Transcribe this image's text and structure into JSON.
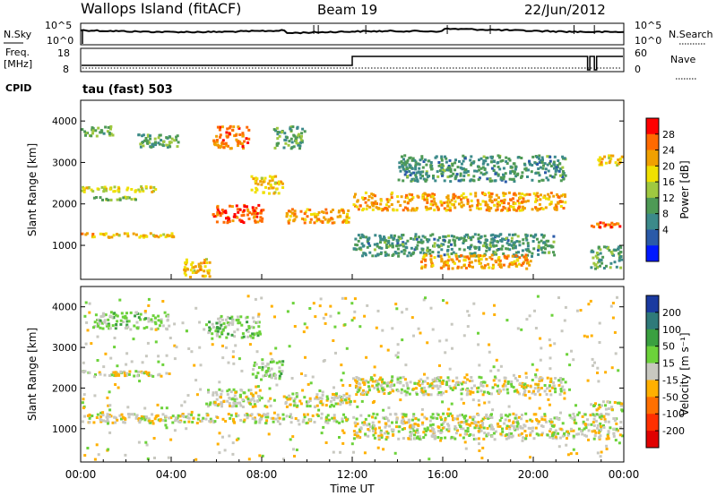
{
  "header": {
    "station": "Wallops Island (fitACF)",
    "beam": "Beam 19",
    "date": "22/Jun/2012"
  },
  "aux_panels": {
    "nsky_label": "N.Sky",
    "nsky_ticks": [
      "10^5",
      "10^0"
    ],
    "nsearch_label": "N.Search",
    "nsearch_ticks": [
      "10^5",
      "10^0"
    ],
    "freq_label_1": "Freq.",
    "freq_label_2": "[MHz]",
    "freq_ticks": [
      "18",
      "8"
    ],
    "nave_label": "Nave",
    "nave_ticks": [
      "60",
      "0"
    ],
    "cpid_label": "CPID",
    "cpid_value": "tau (fast) 503"
  },
  "power_panel": {
    "ylabel": "Slant Range [km]",
    "colorbar_label": "Power [dB]",
    "colorbar_ticks": [
      "28",
      "24",
      "20",
      "16",
      "12",
      "8",
      "4"
    ],
    "colors": [
      "#0018ff",
      "#2a5aa8",
      "#3c8a8a",
      "#4e9a55",
      "#9fc840",
      "#f0e000",
      "#f0a000",
      "#ff6a00",
      "#ff0000"
    ]
  },
  "velocity_panel": {
    "ylabel": "Slant Range [km]",
    "colorbar_label": "Velocity [m s⁻¹]",
    "colorbar_ticks": [
      "200",
      "100",
      "50",
      "15",
      "-15",
      "-50",
      "-100",
      "-200"
    ],
    "colors": [
      "#1a3aa0",
      "#2f7a7a",
      "#3aa040",
      "#6cd23a",
      "#c8c8c0",
      "#ffb000",
      "#ff7000",
      "#ff3000",
      "#e00000"
    ]
  },
  "x_axis": {
    "label": "Time UT",
    "ticks": [
      "00:00",
      "04:00",
      "08:00",
      "12:00",
      "16:00",
      "20:00",
      "00:00"
    ]
  },
  "chart_data": [
    {
      "type": "heatmap",
      "name": "Power",
      "xlabel": "Time UT",
      "ylabel": "Slant Range [km]",
      "xlim": [
        0,
        24
      ],
      "ylim": [
        180,
        4500
      ],
      "yticks": [
        1000,
        2000,
        3000,
        4000
      ],
      "colorbar": {
        "label": "Power [dB]",
        "ticks": [
          4,
          8,
          12,
          16,
          20,
          24,
          28
        ],
        "range": [
          0,
          30
        ]
      },
      "bands": [
        {
          "t0": 0.0,
          "t1": 4.2,
          "r0": 1150,
          "r1": 1320,
          "value": 20
        },
        {
          "t0": 0.0,
          "t1": 3.5,
          "r0": 2250,
          "r1": 2450,
          "value": 18
        },
        {
          "t0": 0.5,
          "t1": 2.5,
          "r0": 2050,
          "r1": 2200,
          "value": 14
        },
        {
          "t0": 0.0,
          "t1": 1.5,
          "r0": 3600,
          "r1": 3900,
          "value": 12
        },
        {
          "t0": 2.5,
          "t1": 4.5,
          "r0": 3300,
          "r1": 3700,
          "value": 12
        },
        {
          "t0": 4.5,
          "t1": 5.8,
          "r0": 200,
          "r1": 700,
          "value": 20
        },
        {
          "t0": 5.8,
          "t1": 8.2,
          "r0": 1500,
          "r1": 2000,
          "value": 26
        },
        {
          "t0": 5.8,
          "t1": 7.5,
          "r0": 3300,
          "r1": 3900,
          "value": 24
        },
        {
          "t0": 7.5,
          "t1": 9.0,
          "r0": 2200,
          "r1": 2700,
          "value": 20
        },
        {
          "t0": 9.0,
          "t1": 12.0,
          "r0": 1500,
          "r1": 1900,
          "value": 22
        },
        {
          "t0": 8.5,
          "t1": 10.0,
          "r0": 3300,
          "r1": 3900,
          "value": 12
        },
        {
          "t0": 12.0,
          "t1": 21.5,
          "r0": 1800,
          "r1": 2300,
          "value": 22
        },
        {
          "t0": 12.0,
          "t1": 21.0,
          "r0": 700,
          "r1": 1300,
          "value": 10
        },
        {
          "t0": 15.0,
          "t1": 20.0,
          "r0": 400,
          "r1": 800,
          "value": 22
        },
        {
          "t0": 14.0,
          "t1": 21.5,
          "r0": 2500,
          "r1": 3200,
          "value": 10
        },
        {
          "t0": 22.5,
          "t1": 24.0,
          "r0": 1400,
          "r1": 1600,
          "value": 24
        },
        {
          "t0": 22.8,
          "t1": 24.0,
          "r0": 2900,
          "r1": 3200,
          "value": 20
        },
        {
          "t0": 22.5,
          "t1": 24.0,
          "r0": 400,
          "r1": 1000,
          "value": 12
        }
      ]
    },
    {
      "type": "heatmap",
      "name": "Velocity",
      "xlabel": "Time UT",
      "ylabel": "Slant Range [km]",
      "xlim": [
        0,
        24
      ],
      "ylim": [
        180,
        4500
      ],
      "yticks": [
        1000,
        2000,
        3000,
        4000
      ],
      "colorbar": {
        "label": "Velocity [m s⁻¹]",
        "ticks": [
          200,
          100,
          50,
          15,
          -15,
          -50,
          -100,
          -200
        ],
        "range": [
          -250,
          250
        ]
      },
      "bands": [
        {
          "t0": 0.0,
          "t1": 12.0,
          "r0": 1100,
          "r1": 1400,
          "value": 0
        },
        {
          "t0": 0.0,
          "t1": 4.0,
          "r0": 2250,
          "r1": 2450,
          "value": 0
        },
        {
          "t0": 0.5,
          "t1": 4.0,
          "r0": 3400,
          "r1": 3900,
          "value": 40
        },
        {
          "t0": 5.5,
          "t1": 8.5,
          "r0": 1500,
          "r1": 2000,
          "value": 0
        },
        {
          "t0": 5.5,
          "t1": 8.0,
          "r0": 3200,
          "r1": 3800,
          "value": 45
        },
        {
          "t0": 7.5,
          "t1": 9.0,
          "r0": 2200,
          "r1": 2700,
          "value": 40
        },
        {
          "t0": 9.0,
          "t1": 12.0,
          "r0": 1500,
          "r1": 1900,
          "value": 0
        },
        {
          "t0": 12.0,
          "t1": 21.5,
          "r0": 1800,
          "r1": 2300,
          "value": 0
        },
        {
          "t0": 12.0,
          "t1": 24.0,
          "r0": 700,
          "r1": 1400,
          "value": 0
        },
        {
          "t0": 22.5,
          "t1": 24.0,
          "r0": 1400,
          "r1": 1700,
          "value": 0
        },
        {
          "t0": 0.0,
          "t1": 24.0,
          "r0": 200,
          "r1": 4300,
          "value": 0
        }
      ]
    }
  ]
}
